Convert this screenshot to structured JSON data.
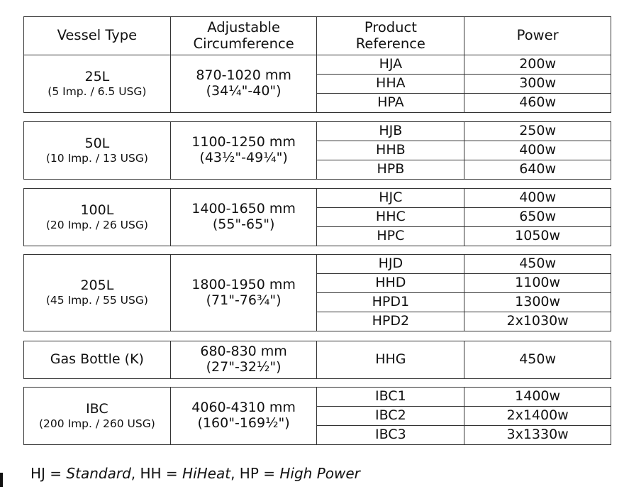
{
  "header": {
    "vessel_type": "Vessel Type",
    "circ_line1": "Adjustable",
    "circ_line2": "Circumference",
    "prod_line1": "Product",
    "prod_line2": "Reference",
    "power": "Power"
  },
  "groups": [
    {
      "vessel": "25L",
      "vessel_sub": "(5 Imp. / 6.5 USG)",
      "circ": "870-1020 mm",
      "circ_in": "(34¼\"-40\")",
      "rows": [
        {
          "ref": "HJA",
          "power": "200w"
        },
        {
          "ref": "HHA",
          "power": "300w"
        },
        {
          "ref": "HPA",
          "power": "460w"
        }
      ]
    },
    {
      "vessel": "50L",
      "vessel_sub": "(10 Imp. / 13 USG)",
      "circ": "1100-1250 mm",
      "circ_in": "(43½\"-49¼\")",
      "rows": [
        {
          "ref": "HJB",
          "power": "250w"
        },
        {
          "ref": "HHB",
          "power": "400w"
        },
        {
          "ref": "HPB",
          "power": "640w"
        }
      ]
    },
    {
      "vessel": "100L",
      "vessel_sub": "(20 Imp. / 26 USG)",
      "circ": "1400-1650 mm",
      "circ_in": "(55\"-65\")",
      "rows": [
        {
          "ref": "HJC",
          "power": "400w"
        },
        {
          "ref": "HHC",
          "power": "650w"
        },
        {
          "ref": "HPC",
          "power": "1050w"
        }
      ]
    },
    {
      "vessel": "205L",
      "vessel_sub": "(45 Imp. / 55 USG)",
      "circ": "1800-1950 mm",
      "circ_in": "(71\"-76¾\")",
      "rows": [
        {
          "ref": "HJD",
          "power": "450w"
        },
        {
          "ref": "HHD",
          "power": "1100w"
        },
        {
          "ref": "HPD1",
          "power": "1300w"
        },
        {
          "ref": "HPD2",
          "power": "2x1030w"
        }
      ]
    },
    {
      "vessel": "Gas Bottle (K)",
      "vessel_sub": "",
      "circ": "680-830 mm",
      "circ_in": "(27\"-32½\")",
      "rows": [
        {
          "ref": "HHG",
          "power": "450w"
        }
      ]
    },
    {
      "vessel": "IBC",
      "vessel_sub": "(200 Imp. / 260 USG)",
      "circ": "4060-4310 mm",
      "circ_in": "(160\"-169½\")",
      "rows": [
        {
          "ref": "IBC1",
          "power": "1400w"
        },
        {
          "ref": "IBC2",
          "power": "2x1400w"
        },
        {
          "ref": "IBC3",
          "power": "3x1330w"
        }
      ]
    }
  ],
  "legend": {
    "p1": "HJ = ",
    "v1": "Standard",
    "p2": ", HH = ",
    "v2": "HiHeat",
    "p3": ", HP = ",
    "v3": "High Power"
  }
}
